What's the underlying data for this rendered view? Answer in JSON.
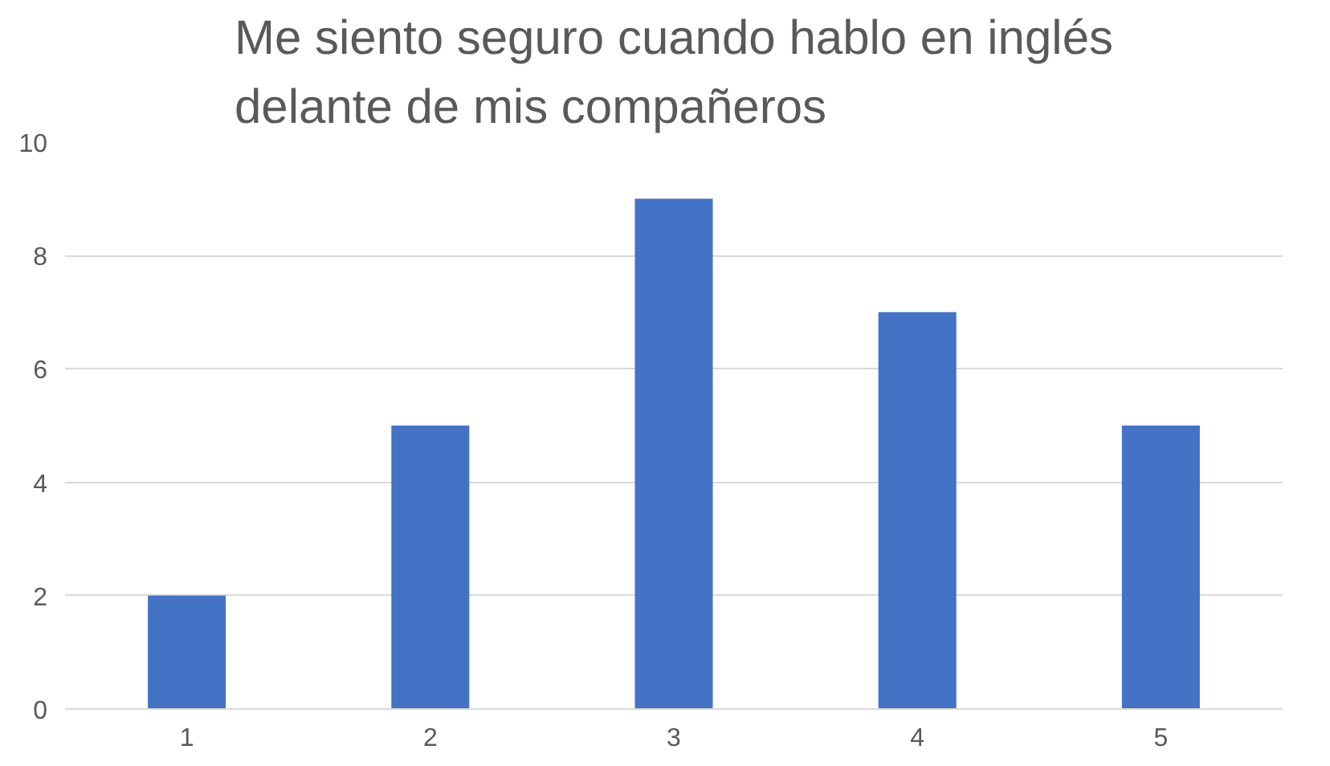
{
  "chart_data": {
    "type": "bar",
    "title": "Me siento seguro cuando hablo en inglés delante de mis compañeros",
    "categories": [
      "1",
      "2",
      "3",
      "4",
      "5"
    ],
    "values": [
      2,
      5,
      9,
      7,
      5
    ],
    "color": "#4472c4",
    "ylim": [
      0,
      10
    ],
    "yticks": [
      0,
      2,
      4,
      6,
      8,
      10
    ],
    "grid": "y"
  }
}
